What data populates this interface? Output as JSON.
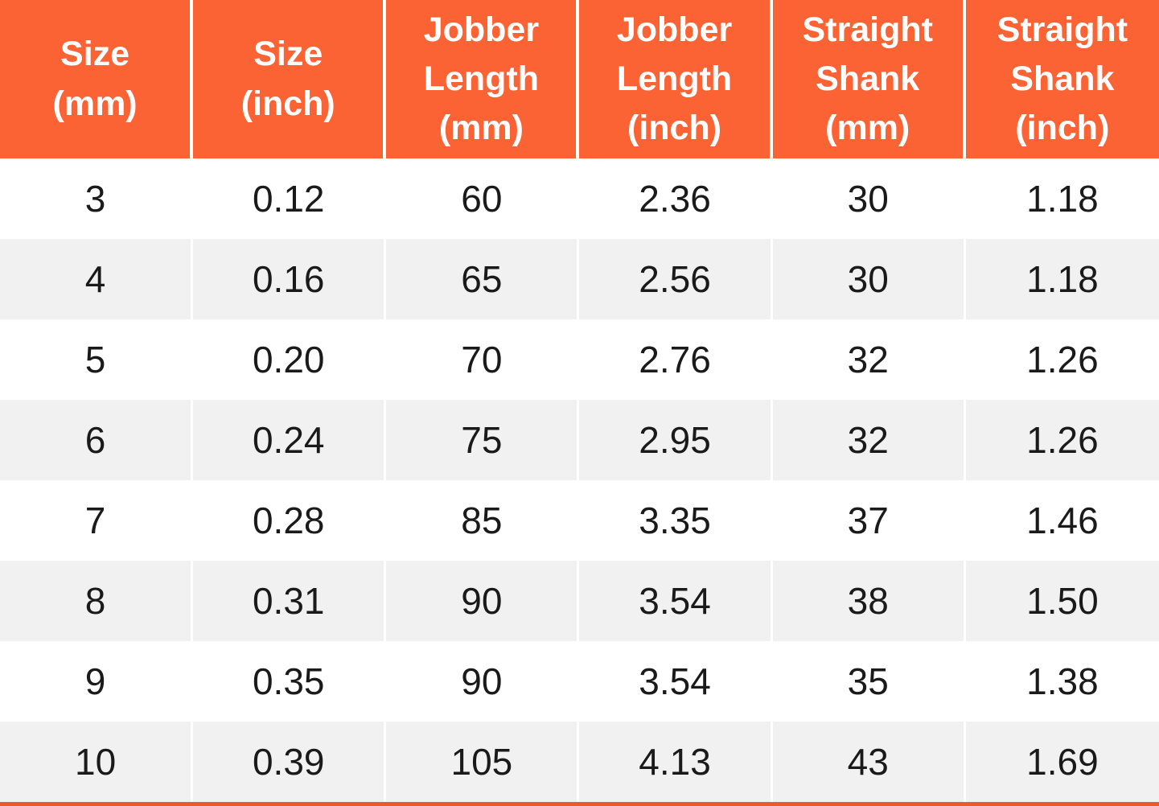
{
  "colors": {
    "header_bg": "#FB6234",
    "header_text": "#FFFFFF",
    "row_bg": "#FFFFFF",
    "row_alt_bg": "#F1F1F1",
    "body_text": "#1A1A1A",
    "column_divider": "#FFFFFF",
    "bottom_border": "#EA5B2B"
  },
  "chart_data": {
    "type": "table",
    "columns": [
      "Size\n(mm)",
      "Size\n(inch)",
      "Jobber\nLength\n(mm)",
      "Jobber\nLength\n(inch)",
      "Straight\nShank\n(mm)",
      "Straight\nShank\n(inch)"
    ],
    "rows": [
      [
        "3",
        "0.12",
        "60",
        "2.36",
        "30",
        "1.18"
      ],
      [
        "4",
        "0.16",
        "65",
        "2.56",
        "30",
        "1.18"
      ],
      [
        "5",
        "0.20",
        "70",
        "2.76",
        "32",
        "1.26"
      ],
      [
        "6",
        "0.24",
        "75",
        "2.95",
        "32",
        "1.26"
      ],
      [
        "7",
        "0.28",
        "85",
        "3.35",
        "37",
        "1.46"
      ],
      [
        "8",
        "0.31",
        "90",
        "3.54",
        "38",
        "1.50"
      ],
      [
        "9",
        "0.35",
        "90",
        "3.54",
        "35",
        "1.38"
      ],
      [
        "10",
        "0.39",
        "105",
        "4.13",
        "43",
        "1.69"
      ]
    ]
  }
}
